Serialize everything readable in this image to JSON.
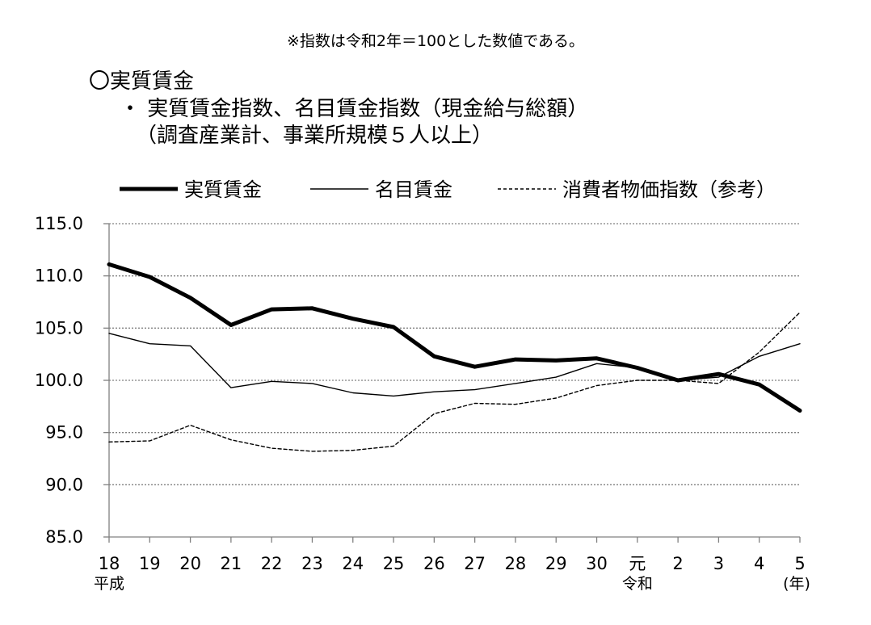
{
  "note": "※指数は令和2年＝100とした数値である。",
  "heading": "〇実質賃金",
  "subheading": "・ 実質賃金指数、名目賃金指数（現金給与総額）",
  "subheading2": "（調査産業計、事業所規模５人以上）",
  "chart_data": {
    "type": "line",
    "title": "実質賃金指数、名目賃金指数（現金給与総額）",
    "xlabel": "(年)",
    "ylabel": "",
    "ylim": [
      85,
      115
    ],
    "yticks": [
      "115.0",
      "110.0",
      "105.0",
      "100.0",
      "95.0",
      "90.0",
      "85.0"
    ],
    "ytick_values": [
      115,
      110,
      105,
      100,
      95,
      90,
      85
    ],
    "categories": [
      "18",
      "19",
      "20",
      "21",
      "22",
      "23",
      "24",
      "25",
      "26",
      "27",
      "28",
      "29",
      "30",
      "元",
      "2",
      "3",
      "4",
      "5"
    ],
    "era_labels": {
      "heisei": "平成",
      "reiwa": "令和",
      "year": "(年)"
    },
    "grid": true,
    "legend_position": "top",
    "series": [
      {
        "name": "実質賃金",
        "style": "thick",
        "color": "#000000",
        "values": [
          111.1,
          109.9,
          107.9,
          105.3,
          106.8,
          106.9,
          105.9,
          105.1,
          102.3,
          101.3,
          102.0,
          101.9,
          102.1,
          101.2,
          100.0,
          100.6,
          99.6,
          97.1
        ]
      },
      {
        "name": "名目賃金",
        "style": "thin",
        "color": "#000000",
        "values": [
          104.5,
          103.5,
          103.3,
          99.3,
          99.9,
          99.7,
          98.8,
          98.5,
          98.9,
          99.1,
          99.7,
          100.3,
          101.6,
          101.2,
          100.0,
          100.3,
          102.3,
          103.5
        ]
      },
      {
        "name": "消費者物価指数（参考）",
        "style": "dashed",
        "color": "#000000",
        "values": [
          94.1,
          94.2,
          95.7,
          94.3,
          93.5,
          93.2,
          93.3,
          93.7,
          96.8,
          97.8,
          97.7,
          98.3,
          99.5,
          100.0,
          100.0,
          99.7,
          102.7,
          106.5
        ]
      }
    ]
  }
}
